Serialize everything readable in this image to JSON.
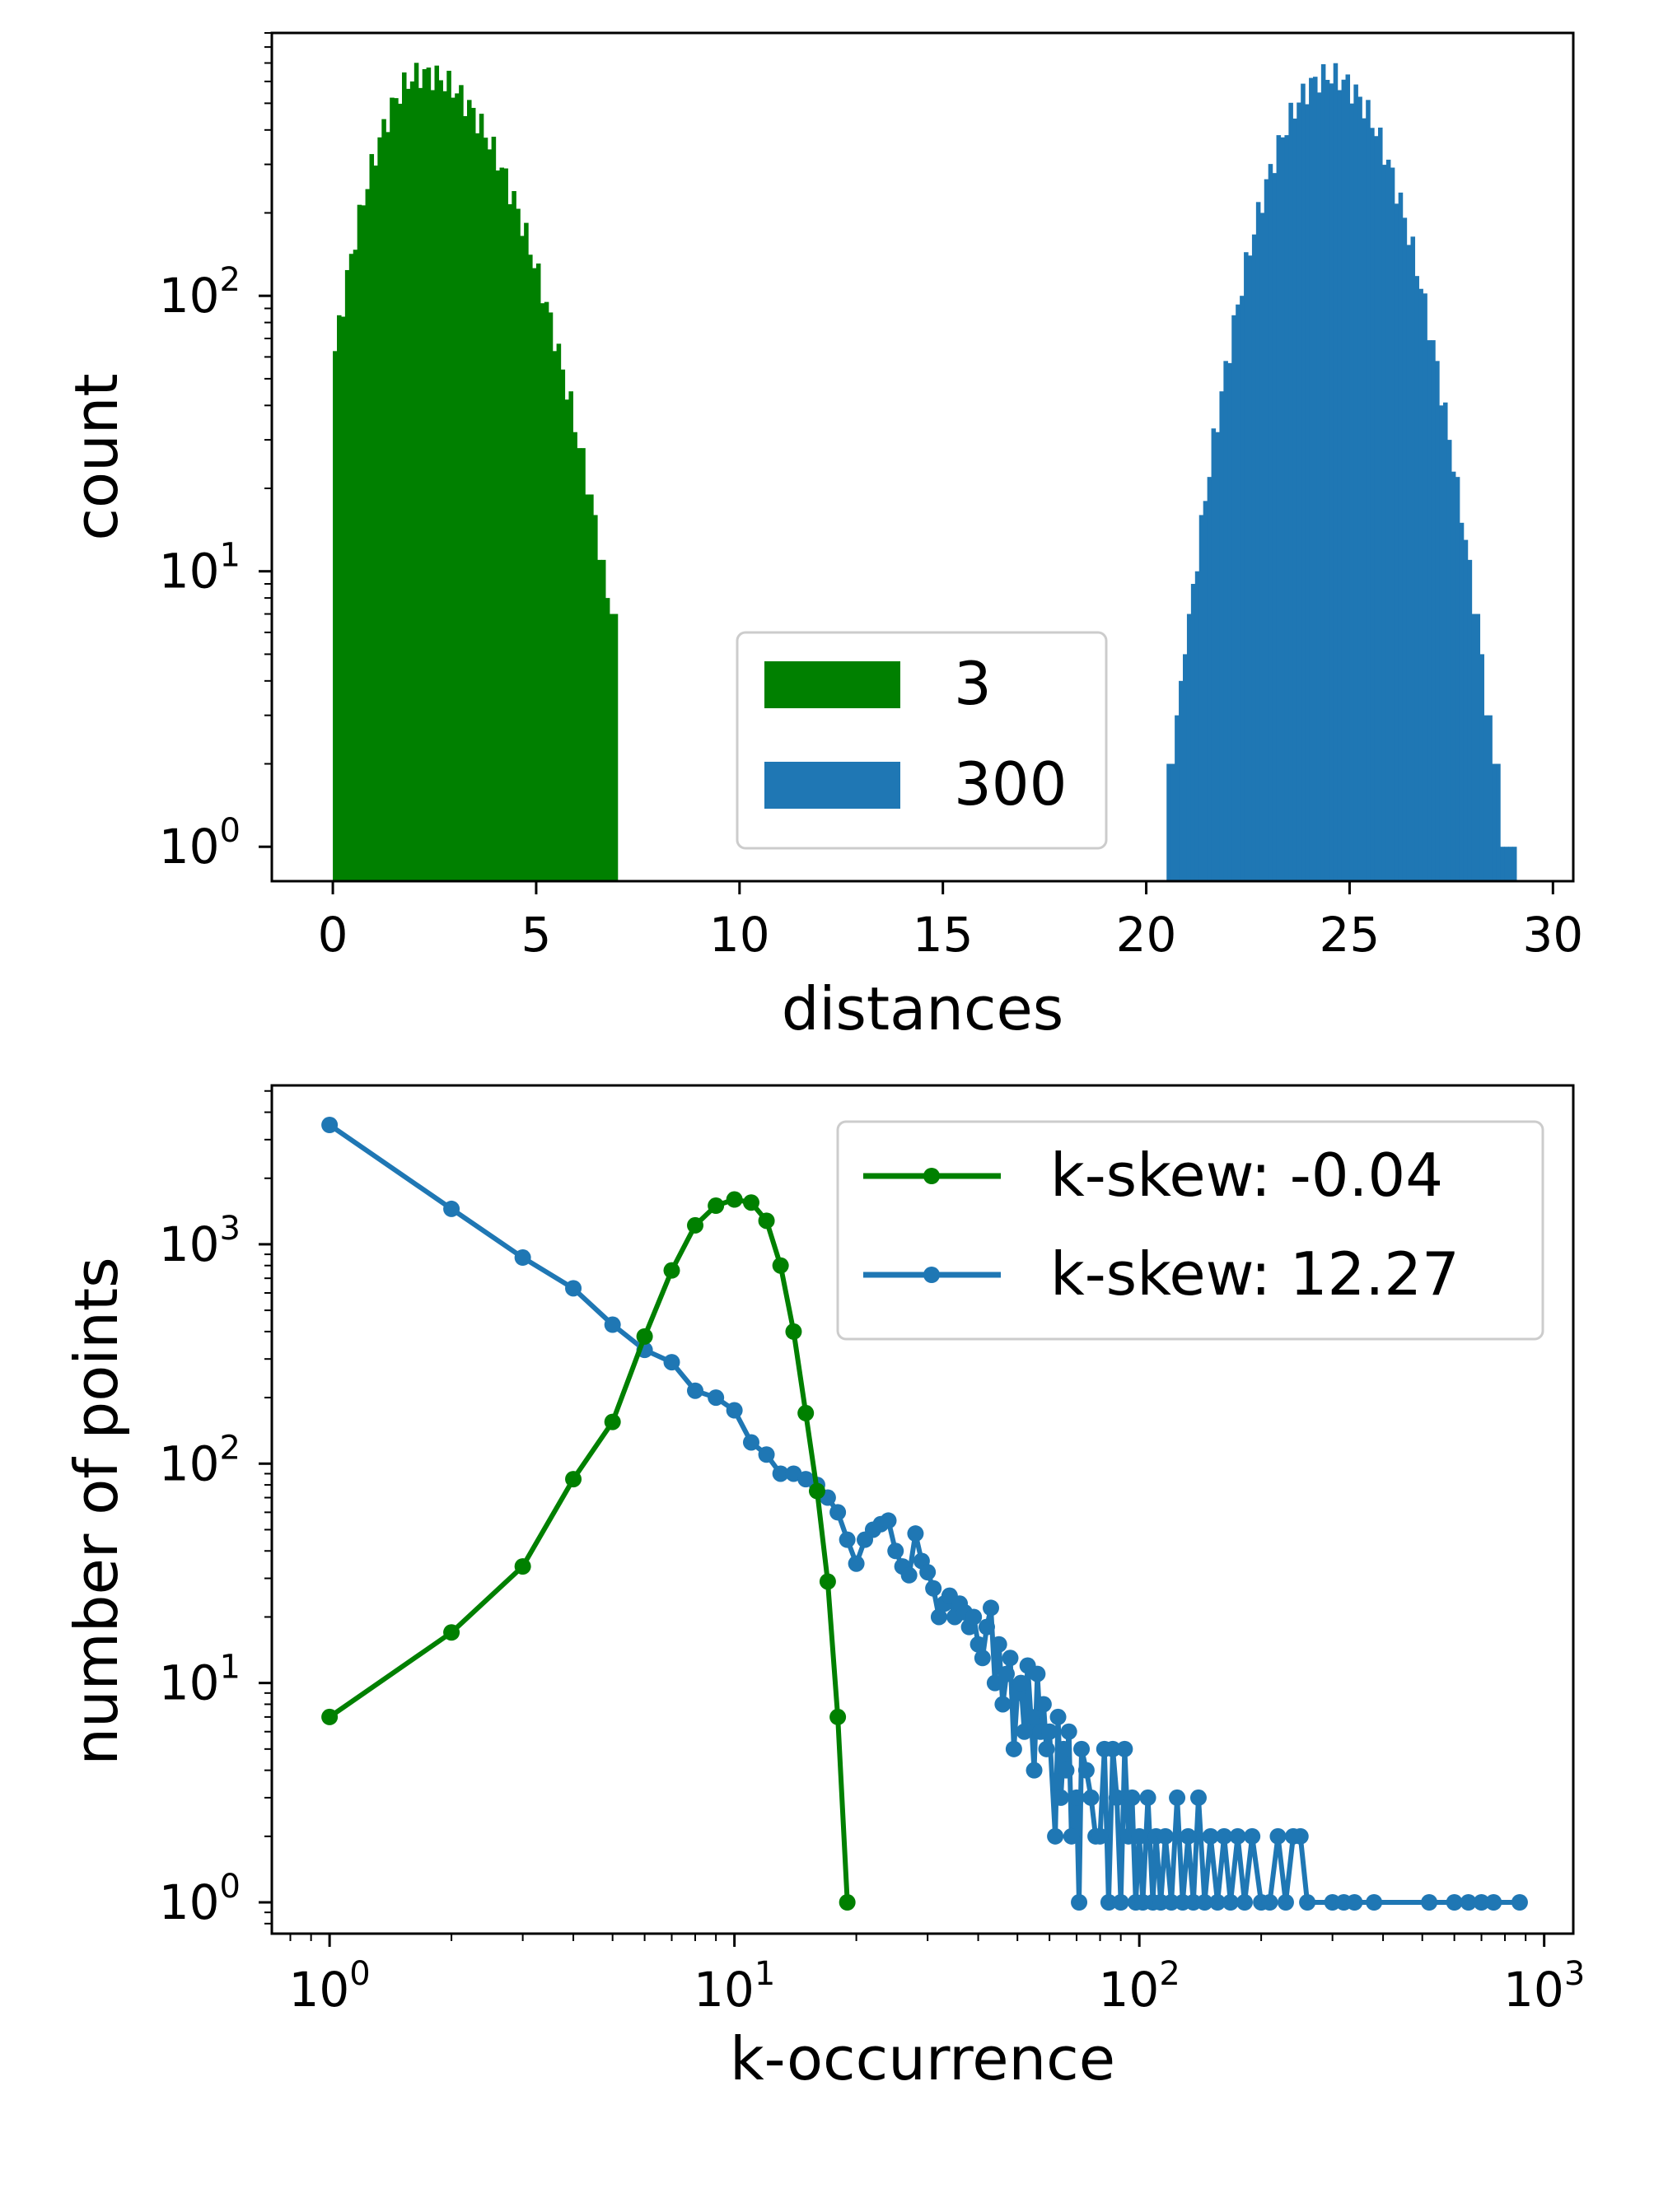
{
  "colors": {
    "green": "#008000",
    "blue": "#1f77b4"
  },
  "chart_data": [
    {
      "type": "bar",
      "title": "",
      "xlabel": "distances",
      "ylabel": "count",
      "yscale": "log",
      "xlim": [
        -1.5,
        30.5
      ],
      "ylim": [
        0.75,
        900
      ],
      "xticks": [
        0,
        5,
        10,
        15,
        20,
        25,
        30
      ],
      "xtick_labels": [
        "0",
        "5",
        "10",
        "15",
        "20",
        "25",
        "30"
      ],
      "yticks": [
        1,
        10,
        100
      ],
      "ytick_labels": [
        {
          "base": "10",
          "exp": "0"
        },
        {
          "base": "10",
          "exp": "1"
        },
        {
          "base": "10",
          "exp": "2"
        }
      ],
      "legend": {
        "position": "center-bottom",
        "entries": [
          {
            "label": "3",
            "color": "#008000"
          },
          {
            "label": "300",
            "color": "#1f77b4"
          }
        ]
      },
      "series": [
        {
          "name": "3",
          "color": "#008000",
          "bin_start": 0,
          "bin_width": 0.1,
          "peak_value": 640,
          "peak_position": 2.2,
          "left_spread": 1.0,
          "right_spread": 1.55,
          "min_extent": 0,
          "max_extent": 7.0
        },
        {
          "name": "300",
          "color": "#1f77b4",
          "bin_start": 20.5,
          "bin_width": 0.1,
          "peak_value": 630,
          "peak_position": 24.5,
          "left_spread": 1.15,
          "right_spread": 1.2,
          "min_extent": 20.5,
          "max_extent": 29.1
        }
      ]
    },
    {
      "type": "line",
      "title": "",
      "xlabel": "k-occurrence",
      "ylabel": "number of points",
      "xscale": "log",
      "yscale": "log",
      "xlim": [
        0.72,
        1180
      ],
      "ylim": [
        0.72,
        5300
      ],
      "xticks": [
        1,
        10,
        100,
        1000
      ],
      "xtick_labels": [
        {
          "base": "10",
          "exp": "0"
        },
        {
          "base": "10",
          "exp": "1"
        },
        {
          "base": "10",
          "exp": "2"
        },
        {
          "base": "10",
          "exp": "3"
        }
      ],
      "yticks": [
        1,
        10,
        100,
        1000
      ],
      "ytick_labels": [
        {
          "base": "10",
          "exp": "0"
        },
        {
          "base": "10",
          "exp": "1"
        },
        {
          "base": "10",
          "exp": "2"
        },
        {
          "base": "10",
          "exp": "3"
        }
      ],
      "legend": {
        "position": "top-right",
        "entries": [
          {
            "label": "k-skew: -0.04",
            "color": "#008000"
          },
          {
            "label": "k-skew: 12.27",
            "color": "#1f77b4"
          }
        ]
      },
      "series": [
        {
          "name": "k-skew: -0.04",
          "color": "#008000",
          "points": [
            [
              1,
              7
            ],
            [
              2,
              17
            ],
            [
              3,
              34
            ],
            [
              4,
              85
            ],
            [
              5,
              155
            ],
            [
              6,
              380
            ],
            [
              7,
              760
            ],
            [
              8,
              1220
            ],
            [
              9,
              1500
            ],
            [
              10,
              1600
            ],
            [
              11,
              1550
            ],
            [
              12,
              1280
            ],
            [
              13,
              800
            ],
            [
              14,
              400
            ],
            [
              15,
              170
            ],
            [
              16,
              75
            ],
            [
              17,
              29
            ],
            [
              18,
              7
            ],
            [
              19,
              1
            ]
          ]
        },
        {
          "name": "k-skew: 12.27",
          "color": "#1f77b4",
          "points": [
            [
              1,
              3500
            ],
            [
              2,
              1450
            ],
            [
              3,
              870
            ],
            [
              4,
              630
            ],
            [
              5,
              430
            ],
            [
              6,
              330
            ],
            [
              7,
              290
            ],
            [
              8,
              215
            ],
            [
              9,
              200
            ],
            [
              10,
              175
            ],
            [
              11,
              125
            ],
            [
              12,
              110
            ],
            [
              13,
              90
            ],
            [
              14,
              90
            ],
            [
              15,
              85
            ],
            [
              16,
              80
            ],
            [
              17,
              70
            ],
            [
              18,
              60
            ],
            [
              19,
              45
            ],
            [
              20,
              35
            ],
            [
              21,
              45
            ],
            [
              22,
              50
            ],
            [
              23,
              53
            ],
            [
              24,
              55
            ],
            [
              25,
              40
            ],
            [
              26,
              34
            ],
            [
              27,
              31
            ],
            [
              28,
              48
            ],
            [
              29,
              36
            ],
            [
              30,
              32
            ],
            [
              31,
              27
            ],
            [
              32,
              20
            ],
            [
              33,
              23
            ],
            [
              34,
              25
            ],
            [
              35,
              20
            ],
            [
              36,
              23
            ],
            [
              37,
              21
            ],
            [
              38,
              18
            ],
            [
              39,
              20
            ],
            [
              40,
              15
            ],
            [
              41,
              13
            ],
            [
              42,
              18
            ],
            [
              43,
              22
            ],
            [
              44,
              10
            ],
            [
              45,
              15
            ],
            [
              46,
              8
            ],
            [
              47,
              11
            ],
            [
              48,
              13
            ],
            [
              49,
              5
            ],
            [
              50,
              9
            ],
            [
              51,
              10
            ],
            [
              52,
              6
            ],
            [
              53,
              12
            ],
            [
              54,
              7
            ],
            [
              55,
              4
            ],
            [
              56,
              11
            ],
            [
              57,
              6
            ],
            [
              58,
              8
            ],
            [
              59,
              5
            ],
            [
              60,
              6
            ],
            [
              62,
              2
            ],
            [
              63,
              7
            ],
            [
              64,
              3
            ],
            [
              65,
              5
            ],
            [
              66,
              4
            ],
            [
              67,
              6
            ],
            [
              68,
              2
            ],
            [
              70,
              3
            ],
            [
              71,
              1
            ],
            [
              72,
              5
            ],
            [
              74,
              4
            ],
            [
              76,
              3
            ],
            [
              78,
              2
            ],
            [
              80,
              2
            ],
            [
              82,
              5
            ],
            [
              84,
              1
            ],
            [
              86,
              5
            ],
            [
              88,
              3
            ],
            [
              90,
              1
            ],
            [
              92,
              5
            ],
            [
              94,
              2
            ],
            [
              96,
              3
            ],
            [
              98,
              1
            ],
            [
              100,
              2
            ],
            [
              102,
              1
            ],
            [
              105,
              3
            ],
            [
              108,
              1
            ],
            [
              110,
              2
            ],
            [
              113,
              1
            ],
            [
              116,
              2
            ],
            [
              120,
              1
            ],
            [
              124,
              3
            ],
            [
              128,
              1
            ],
            [
              132,
              2
            ],
            [
              136,
              1
            ],
            [
              140,
              3
            ],
            [
              145,
              1
            ],
            [
              150,
              2
            ],
            [
              156,
              1
            ],
            [
              162,
              2
            ],
            [
              168,
              1
            ],
            [
              175,
              2
            ],
            [
              182,
              1
            ],
            [
              190,
              2
            ],
            [
              200,
              1
            ],
            [
              210,
              1
            ],
            [
              220,
              2
            ],
            [
              230,
              1
            ],
            [
              240,
              2
            ],
            [
              250,
              2
            ],
            [
              260,
              1
            ],
            [
              300,
              1
            ],
            [
              320,
              1
            ],
            [
              340,
              1
            ],
            [
              380,
              1
            ],
            [
              520,
              1
            ],
            [
              600,
              1
            ],
            [
              650,
              1
            ],
            [
              700,
              1
            ],
            [
              750,
              1
            ],
            [
              870,
              1
            ]
          ]
        }
      ]
    }
  ]
}
